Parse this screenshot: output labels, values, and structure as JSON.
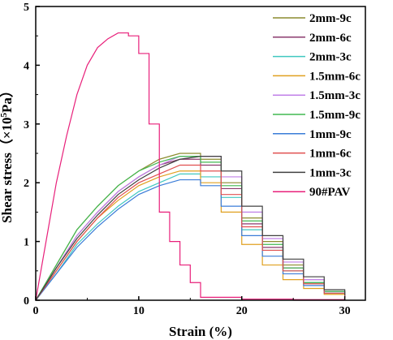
{
  "chart_data": {
    "type": "line",
    "xlabel": "Strain (%)",
    "ylabel": {
      "prefix": "Shear stress（×10",
      "sup": "5",
      "suffix": "Pa）"
    },
    "xlim": [
      0,
      32
    ],
    "ylim": [
      0,
      5
    ],
    "x_ticks": [
      0,
      10,
      20,
      30
    ],
    "y_ticks": [
      0,
      1,
      2,
      3,
      4,
      5
    ],
    "grid": false,
    "legend_position": "right",
    "series": [
      {
        "name": "2mm-9c",
        "color": "#8c8c2e",
        "x": [
          0,
          2,
          4,
          6,
          8,
          10,
          12,
          14,
          16,
          18,
          20,
          22,
          24,
          26,
          28,
          30
        ],
        "y": [
          0,
          0.6,
          1.2,
          1.6,
          1.95,
          2.2,
          2.4,
          2.5,
          2.4,
          2.0,
          1.4,
          1.0,
          0.6,
          0.35,
          0.15,
          0.08
        ]
      },
      {
        "name": "2mm-6c",
        "color": "#8b3a6e",
        "x": [
          0,
          2,
          4,
          6,
          8,
          10,
          12,
          14,
          16,
          18,
          20,
          22,
          24,
          26,
          28,
          30
        ],
        "y": [
          0,
          0.55,
          1.1,
          1.5,
          1.85,
          2.1,
          2.3,
          2.4,
          2.3,
          1.9,
          1.3,
          0.9,
          0.55,
          0.3,
          0.15,
          0.08
        ]
      },
      {
        "name": "2mm-3c",
        "color": "#40c8c0",
        "x": [
          0,
          2,
          4,
          6,
          8,
          10,
          12,
          14,
          16,
          18,
          20,
          22,
          24,
          26,
          28,
          30
        ],
        "y": [
          0,
          0.45,
          0.95,
          1.3,
          1.6,
          1.85,
          2.0,
          2.15,
          2.1,
          1.75,
          1.2,
          0.85,
          0.5,
          0.3,
          0.15,
          0.08
        ]
      },
      {
        "name": "1.5mm-6c",
        "color": "#e0a020",
        "x": [
          0,
          2,
          4,
          6,
          8,
          10,
          12,
          14,
          16,
          18,
          20,
          22,
          24,
          26,
          28,
          30
        ],
        "y": [
          0,
          0.5,
          1.0,
          1.4,
          1.7,
          1.95,
          2.1,
          2.2,
          2.0,
          1.5,
          0.95,
          0.6,
          0.35,
          0.2,
          0.1,
          0.05
        ]
      },
      {
        "name": "1.5mm-3c",
        "color": "#c080e8",
        "x": [
          0,
          2,
          4,
          6,
          8,
          10,
          12,
          14,
          16,
          18,
          20,
          22,
          24,
          26,
          28,
          30
        ],
        "y": [
          0,
          0.55,
          1.1,
          1.5,
          1.85,
          2.1,
          2.3,
          2.45,
          2.45,
          2.1,
          1.5,
          1.05,
          0.65,
          0.35,
          0.15,
          0.08
        ]
      },
      {
        "name": "1.5mm-9c",
        "color": "#40b850",
        "x": [
          0,
          2,
          4,
          6,
          8,
          10,
          12,
          14,
          16,
          18,
          20,
          22,
          24,
          26,
          28,
          30
        ],
        "y": [
          0,
          0.6,
          1.2,
          1.6,
          1.95,
          2.2,
          2.35,
          2.45,
          2.35,
          1.95,
          1.35,
          0.95,
          0.55,
          0.3,
          0.15,
          0.08
        ]
      },
      {
        "name": "1mm-9c",
        "color": "#3a7cd8",
        "x": [
          0,
          2,
          4,
          6,
          8,
          10,
          12,
          14,
          16,
          18,
          20,
          22,
          24,
          26,
          28,
          30
        ],
        "y": [
          0,
          0.45,
          0.9,
          1.25,
          1.55,
          1.8,
          1.95,
          2.05,
          1.95,
          1.6,
          1.1,
          0.75,
          0.45,
          0.25,
          0.12,
          0.06
        ]
      },
      {
        "name": "1mm-6c",
        "color": "#e05050",
        "x": [
          0,
          2,
          4,
          6,
          8,
          10,
          12,
          14,
          16,
          18,
          20,
          22,
          24,
          26,
          28,
          30
        ],
        "y": [
          0,
          0.5,
          1.0,
          1.4,
          1.75,
          2.0,
          2.15,
          2.3,
          2.2,
          1.8,
          1.25,
          0.85,
          0.5,
          0.28,
          0.12,
          0.06
        ]
      },
      {
        "name": "1mm-3c",
        "color": "#404040",
        "x": [
          0,
          2,
          4,
          6,
          8,
          10,
          12,
          14,
          16,
          18,
          20,
          22,
          24,
          26,
          28,
          30
        ],
        "y": [
          0,
          0.55,
          1.05,
          1.45,
          1.8,
          2.05,
          2.25,
          2.4,
          2.45,
          2.2,
          1.6,
          1.1,
          0.7,
          0.4,
          0.18,
          0.08
        ]
      },
      {
        "name": "90#PAV",
        "color": "#e8207a",
        "x": [
          0,
          1,
          2,
          3,
          4,
          5,
          6,
          7,
          8,
          9,
          10,
          11,
          12,
          13,
          14,
          15,
          16,
          20,
          25,
          30
        ],
        "y": [
          0,
          1.0,
          2.0,
          2.8,
          3.5,
          4.0,
          4.3,
          4.45,
          4.55,
          4.5,
          4.2,
          3.0,
          1.5,
          1.0,
          0.6,
          0.3,
          0.05,
          0.02,
          0.01,
          0.0
        ]
      }
    ]
  }
}
